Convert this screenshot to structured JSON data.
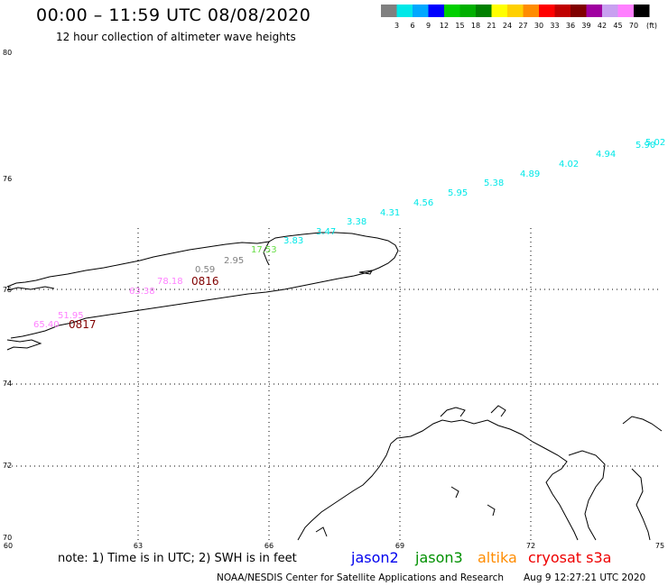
{
  "title": "00:00 – 11:59 UTC 08/08/2020",
  "subtitle": "12 hour collection of altimeter wave heights",
  "legend": {
    "unit_label": "(ft)",
    "bins": [
      {
        "label": "3",
        "color": "#808080"
      },
      {
        "label": "6",
        "color": "#00e8e8"
      },
      {
        "label": "9",
        "color": "#00a8ff"
      },
      {
        "label": "12",
        "color": "#0000ff"
      },
      {
        "label": "15",
        "color": "#00d000"
      },
      {
        "label": "18",
        "color": "#00b000"
      },
      {
        "label": "21",
        "color": "#008000"
      },
      {
        "label": "24",
        "color": "#ffff00"
      },
      {
        "label": "27",
        "color": "#ffd000"
      },
      {
        "label": "30",
        "color": "#ff8c00"
      },
      {
        "label": "33",
        "color": "#ff0000"
      },
      {
        "label": "36",
        "color": "#c00000"
      },
      {
        "label": "39",
        "color": "#800000"
      },
      {
        "label": "42",
        "color": "#a000a0"
      },
      {
        "label": "45",
        "color": "#c8a0f0"
      },
      {
        "label": "70",
        "color": "#ff80ff"
      },
      {
        "label": "",
        "color": "#000000"
      }
    ]
  },
  "axes": {
    "lat_ticks": [
      "80",
      "76",
      "75",
      "74",
      "72",
      "70"
    ],
    "lon_ticks": [
      "60",
      "63",
      "66",
      "69",
      "72",
      "75"
    ]
  },
  "wave_heights": [
    {
      "value": "5.02",
      "color": "#00e8e8"
    },
    {
      "value": "5.90",
      "color": "#00e8e8"
    },
    {
      "value": "4.94",
      "color": "#00e8e8"
    },
    {
      "value": "4.02",
      "color": "#00e8e8"
    },
    {
      "value": "4.89",
      "color": "#00e8e8"
    },
    {
      "value": "5.38",
      "color": "#00e8e8"
    },
    {
      "value": "5.95",
      "color": "#00e8e8"
    },
    {
      "value": "4.56",
      "color": "#00e8e8"
    },
    {
      "value": "4.31",
      "color": "#00e8e8"
    },
    {
      "value": "3.38",
      "color": "#00e8e8"
    },
    {
      "value": "3.47",
      "color": "#00e8e8"
    },
    {
      "value": "3.83",
      "color": "#00e8e8"
    },
    {
      "value": "17.53",
      "color": "#66dd44"
    },
    {
      "value": "2.95",
      "color": "#808080"
    },
    {
      "value": "0.59",
      "color": "#808080"
    },
    {
      "value": "78.18",
      "color": "#ff80ff"
    },
    {
      "value": "63.38",
      "color": "#ff80ff"
    },
    {
      "value": "51.95",
      "color": "#ff80ff"
    },
    {
      "value": "65.40",
      "color": "#ff80ff"
    }
  ],
  "track_dates": [
    {
      "label": "0816",
      "color": "#800000"
    },
    {
      "label": "0817",
      "color": "#800000"
    }
  ],
  "footer": {
    "note": "note:  1) Time is in UTC;  2) SWH is in feet",
    "satellites": [
      {
        "name": "jason2",
        "color": "#0000ee"
      },
      {
        "name": "jason3",
        "color": "#009000"
      },
      {
        "name": "altika",
        "color": "#ff8c00"
      },
      {
        "name": "cryosat s3a",
        "color": "#ee0000"
      }
    ],
    "credit": "NOAA/NESDIS Center for Satellite Applications and Research",
    "timestamp": "Aug  9 12:27:21 UTC 2020"
  }
}
